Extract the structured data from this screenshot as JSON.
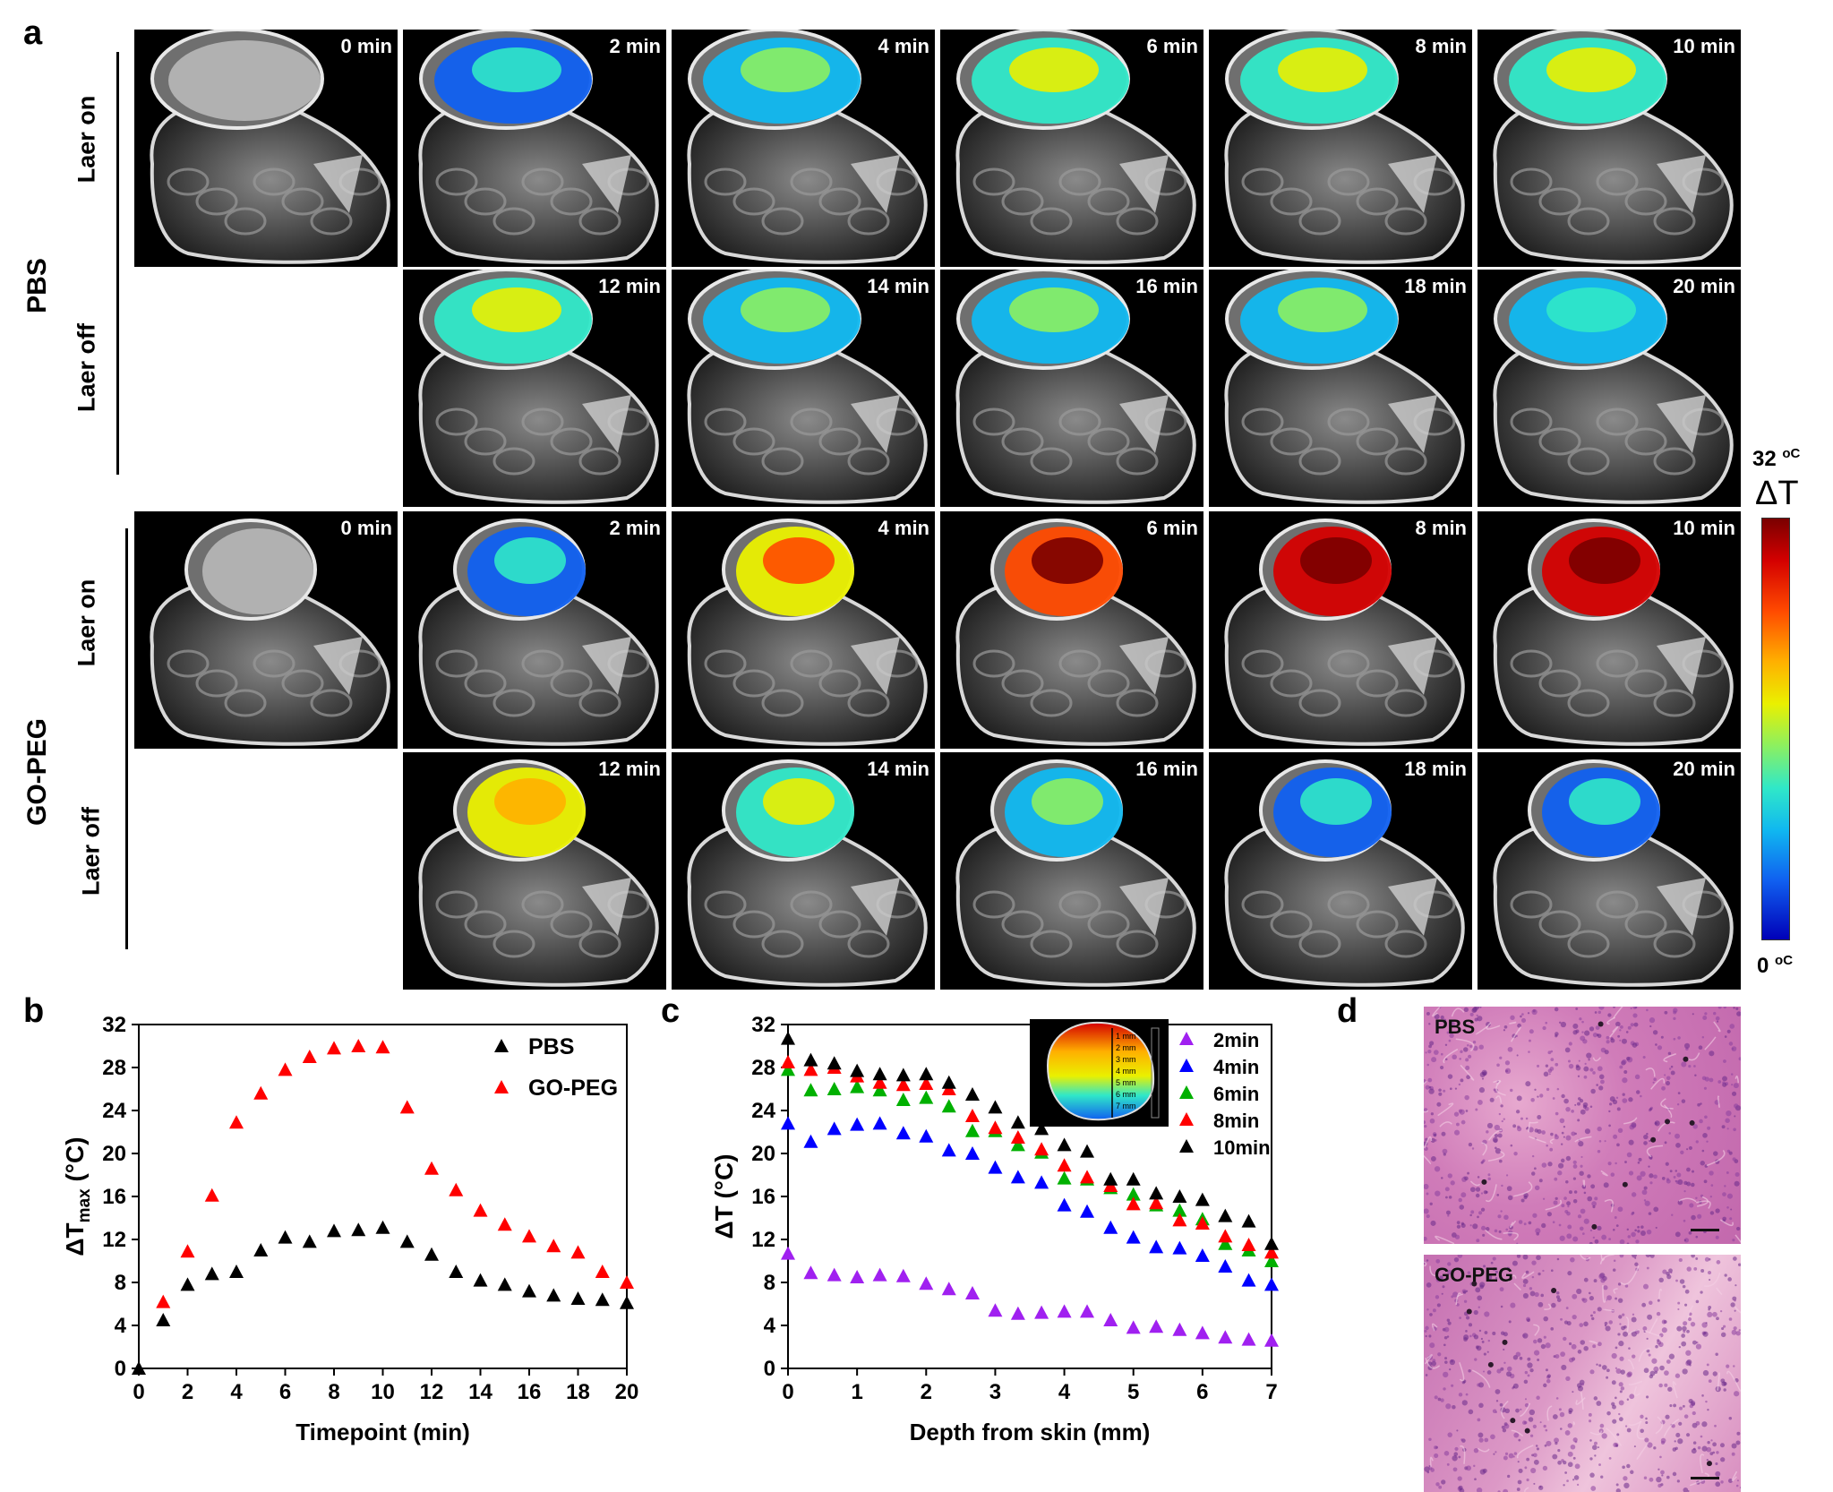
{
  "panels": {
    "a": "a",
    "b": "b",
    "c": "c",
    "d": "d"
  },
  "panel_a": {
    "groups": [
      {
        "name": "PBS",
        "rows": [
          {
            "label": "Laer on",
            "times": [
              "0 min",
              "2 min",
              "4 min",
              "6 min",
              "8 min",
              "10 min"
            ]
          },
          {
            "label": "Laer off",
            "times": [
              "12 min",
              "14 min",
              "16 min",
              "18 min",
              "20 min"
            ]
          }
        ]
      },
      {
        "name": "GO-PEG",
        "rows": [
          {
            "label": "Laer on",
            "times": [
              "0 min",
              "2 min",
              "4 min",
              "6 min",
              "8 min",
              "10 min"
            ]
          },
          {
            "label": "Laer off",
            "times": [
              "12 min",
              "14 min",
              "16 min",
              "18 min",
              "20 min"
            ]
          }
        ]
      }
    ],
    "colorbar": {
      "label": "ΔT",
      "max": "32",
      "min": "0",
      "unit": "oC",
      "colors": [
        "#7a0000",
        "#d40000",
        "#ff4a00",
        "#ffb000",
        "#eaf000",
        "#8cf060",
        "#30e8c8",
        "#10b8f0",
        "#1060f0",
        "#0000b8"
      ]
    }
  },
  "panel_d": {
    "labels": [
      "PBS",
      "GO-PEG"
    ]
  },
  "chart_data": [
    {
      "type": "scatter",
      "panel": "b",
      "xlabel": "Timepoint (min)",
      "ylabel_main": "ΔT",
      "ylabel_sub": "max",
      "ylabel_unit": " (°C)",
      "xlim": [
        0,
        20
      ],
      "ylim": [
        0,
        32
      ],
      "xticks": [
        0,
        2,
        4,
        6,
        8,
        10,
        12,
        14,
        16,
        18,
        20
      ],
      "yticks": [
        0,
        4,
        8,
        12,
        16,
        20,
        24,
        28,
        32
      ],
      "legend_position": "top-right",
      "series": [
        {
          "name": "PBS",
          "color": "#000000",
          "x": [
            0,
            1,
            2,
            3,
            4,
            5,
            6,
            7,
            8,
            9,
            10,
            11,
            12,
            13,
            14,
            15,
            16,
            17,
            18,
            19,
            20
          ],
          "y": [
            0,
            4.5,
            7.8,
            8.8,
            9.0,
            11.0,
            12.2,
            11.8,
            12.8,
            12.9,
            13.1,
            11.8,
            10.6,
            9.0,
            8.2,
            7.8,
            7.2,
            6.8,
            6.5,
            6.4,
            6.1
          ]
        },
        {
          "name": "GO-PEG",
          "color": "#ff0000",
          "x": [
            1,
            2,
            3,
            4,
            5,
            6,
            7,
            8,
            9,
            10,
            11,
            12,
            13,
            14,
            15,
            16,
            17,
            18,
            19,
            20
          ],
          "y": [
            6.2,
            10.9,
            16.1,
            22.9,
            25.6,
            27.8,
            29.0,
            29.8,
            30.0,
            29.9,
            24.3,
            18.6,
            16.6,
            14.7,
            13.4,
            12.3,
            11.4,
            10.8,
            9.0,
            8.0
          ]
        }
      ]
    },
    {
      "type": "scatter",
      "panel": "c",
      "xlabel": "Depth from skin (mm)",
      "ylabel": "ΔT (°C)",
      "xlim": [
        0,
        7
      ],
      "ylim": [
        0,
        32
      ],
      "xticks": [
        0,
        1,
        2,
        3,
        4,
        5,
        6,
        7
      ],
      "yticks": [
        0,
        4,
        8,
        12,
        16,
        20,
        24,
        28,
        32
      ],
      "legend_position": "top-right",
      "inset_labels": [
        "1 mm",
        "2 mm",
        "3 mm",
        "4 mm",
        "5 mm",
        "6 mm",
        "7 mm"
      ],
      "x": [
        0,
        0.33,
        0.67,
        1,
        1.33,
        1.67,
        2,
        2.33,
        2.67,
        3,
        3.33,
        3.67,
        4,
        4.33,
        4.67,
        5,
        5.33,
        5.67,
        6,
        6.33,
        6.67,
        7
      ],
      "series": [
        {
          "name": "2min",
          "color": "#a020f0",
          "y": [
            10.7,
            8.9,
            8.7,
            8.5,
            8.7,
            8.6,
            7.9,
            7.4,
            7.0,
            5.4,
            5.1,
            5.2,
            5.3,
            5.3,
            4.5,
            3.8,
            3.9,
            3.6,
            3.3,
            2.9,
            2.7,
            2.6
          ]
        },
        {
          "name": "4min",
          "color": "#0000ff",
          "y": [
            22.8,
            21.1,
            22.3,
            22.7,
            22.8,
            21.9,
            21.6,
            20.3,
            20.0,
            18.7,
            17.8,
            17.3,
            15.2,
            14.6,
            13.1,
            12.2,
            11.3,
            11.2,
            10.5,
            9.5,
            8.2,
            7.8
          ]
        },
        {
          "name": "6min",
          "color": "#00b000",
          "y": [
            27.8,
            25.9,
            26.0,
            26.2,
            25.9,
            25.0,
            25.2,
            24.4,
            22.1,
            22.1,
            20.8,
            20.1,
            17.7,
            17.6,
            16.8,
            16.2,
            15.2,
            14.7,
            13.9,
            11.6,
            11.0,
            10.0
          ]
        },
        {
          "name": "8min",
          "color": "#ff0000",
          "y": [
            28.5,
            27.8,
            28.0,
            27.2,
            26.6,
            26.4,
            26.5,
            26.0,
            23.5,
            22.4,
            21.5,
            20.4,
            18.9,
            17.8,
            17.0,
            15.3,
            15.4,
            13.8,
            13.5,
            12.3,
            11.5,
            10.8
          ]
        },
        {
          "name": "10min",
          "color": "#000000",
          "y": [
            30.7,
            28.7,
            28.4,
            27.7,
            27.4,
            27.3,
            27.4,
            26.6,
            25.5,
            24.3,
            22.9,
            22.3,
            20.8,
            20.2,
            17.6,
            17.6,
            16.3,
            16.0,
            15.7,
            14.2,
            13.7,
            11.6
          ]
        }
      ]
    }
  ]
}
